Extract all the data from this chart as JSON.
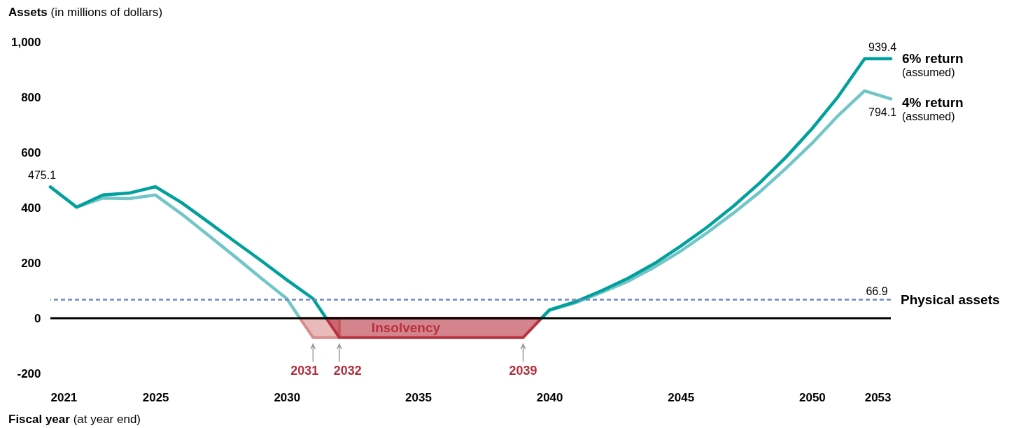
{
  "chart_data": {
    "type": "line",
    "xlabel": "Fiscal year (at year end)",
    "ylabel": "Assets (in millions of dollars)",
    "xlim": [
      2021,
      2053
    ],
    "xticks": [
      2021,
      2025,
      2030,
      2035,
      2040,
      2045,
      2050,
      2053
    ],
    "ylim": [
      -200,
      1000
    ],
    "yticks": [
      -200,
      0,
      200,
      400,
      600,
      800,
      {
        "value": 1000,
        "label": "1,000"
      }
    ],
    "grid": false,
    "legend": false,
    "series": [
      {
        "type": "area",
        "color": "#d98c8c",
        "x": [
          2030.5,
          2031,
          2032
        ],
        "values": [
          0,
          -70,
          -70
        ]
      },
      {
        "name": "Insolvency",
        "type": "area",
        "color": "#b8323f",
        "x": [
          2031.5,
          2032,
          2039,
          2039.7
        ],
        "values": [
          0,
          -70,
          -70,
          0
        ]
      },
      {
        "name": "4% return\n(assumed)",
        "color": "#73c6c7",
        "x": [
          2021,
          2022,
          2023,
          2024,
          2025,
          2026,
          2027,
          2028,
          2029,
          2030,
          2030.5,
          2035,
          2039.7,
          2040,
          2041,
          2042,
          2043,
          2044,
          2045,
          2046,
          2047,
          2048,
          2049,
          2050,
          2051,
          2052,
          2053
        ],
        "values": [
          475.1,
          402,
          435,
          433,
          446,
          377,
          301,
          225,
          147,
          71,
          0,
          null,
          0,
          28,
          56,
          94,
          134,
          185,
          243,
          309,
          380,
          456,
          542,
          633,
          734,
          823,
          794.1
        ],
        "value_labels": [
          null,
          null,
          null,
          null,
          null,
          null,
          null,
          null,
          null,
          null,
          null,
          null,
          null,
          null,
          null,
          null,
          null,
          null,
          null,
          null,
          null,
          null,
          null,
          null,
          null,
          null,
          "794.1"
        ]
      },
      {
        "name": "6% return\n(assumed)",
        "color": "#00a09c",
        "x": [
          2021,
          2022,
          2023,
          2024,
          2025,
          2026,
          2027,
          2028,
          2029,
          2030,
          2031,
          2031.5,
          2035,
          2039.7,
          2040,
          2041,
          2042,
          2043,
          2044,
          2045,
          2046,
          2047,
          2048,
          2049,
          2050,
          2051,
          2052,
          2053
        ],
        "values": [
          475.1,
          402,
          446,
          453,
          476,
          418,
          349,
          279,
          210,
          139,
          71,
          0,
          null,
          0,
          30,
          60,
          100,
          145,
          198,
          261,
          329,
          405,
          489,
          582,
          686,
          803,
          939.4,
          939.4
        ],
        "value_labels": [
          "475.1",
          null,
          null,
          null,
          null,
          null,
          null,
          null,
          null,
          null,
          null,
          null,
          null,
          null,
          null,
          null,
          null,
          null,
          null,
          null,
          null,
          null,
          null,
          null,
          null,
          null,
          null,
          "939.4"
        ]
      }
    ],
    "ref_lines": [
      {
        "axis": "y",
        "value": 0,
        "color": "#000000",
        "line_style": "solid"
      },
      {
        "axis": "y",
        "value": 66.9,
        "label": "Physical assets",
        "color": "#6f86c8",
        "line_style": "dashed"
      }
    ],
    "annotations": [
      "66.9",
      {
        "text": "2031",
        "x": 2031,
        "y": -70
      },
      {
        "text": "2032",
        "x": 2032,
        "y": -70
      },
      {
        "text": "2039",
        "x": 2039,
        "y": -70
      }
    ]
  }
}
